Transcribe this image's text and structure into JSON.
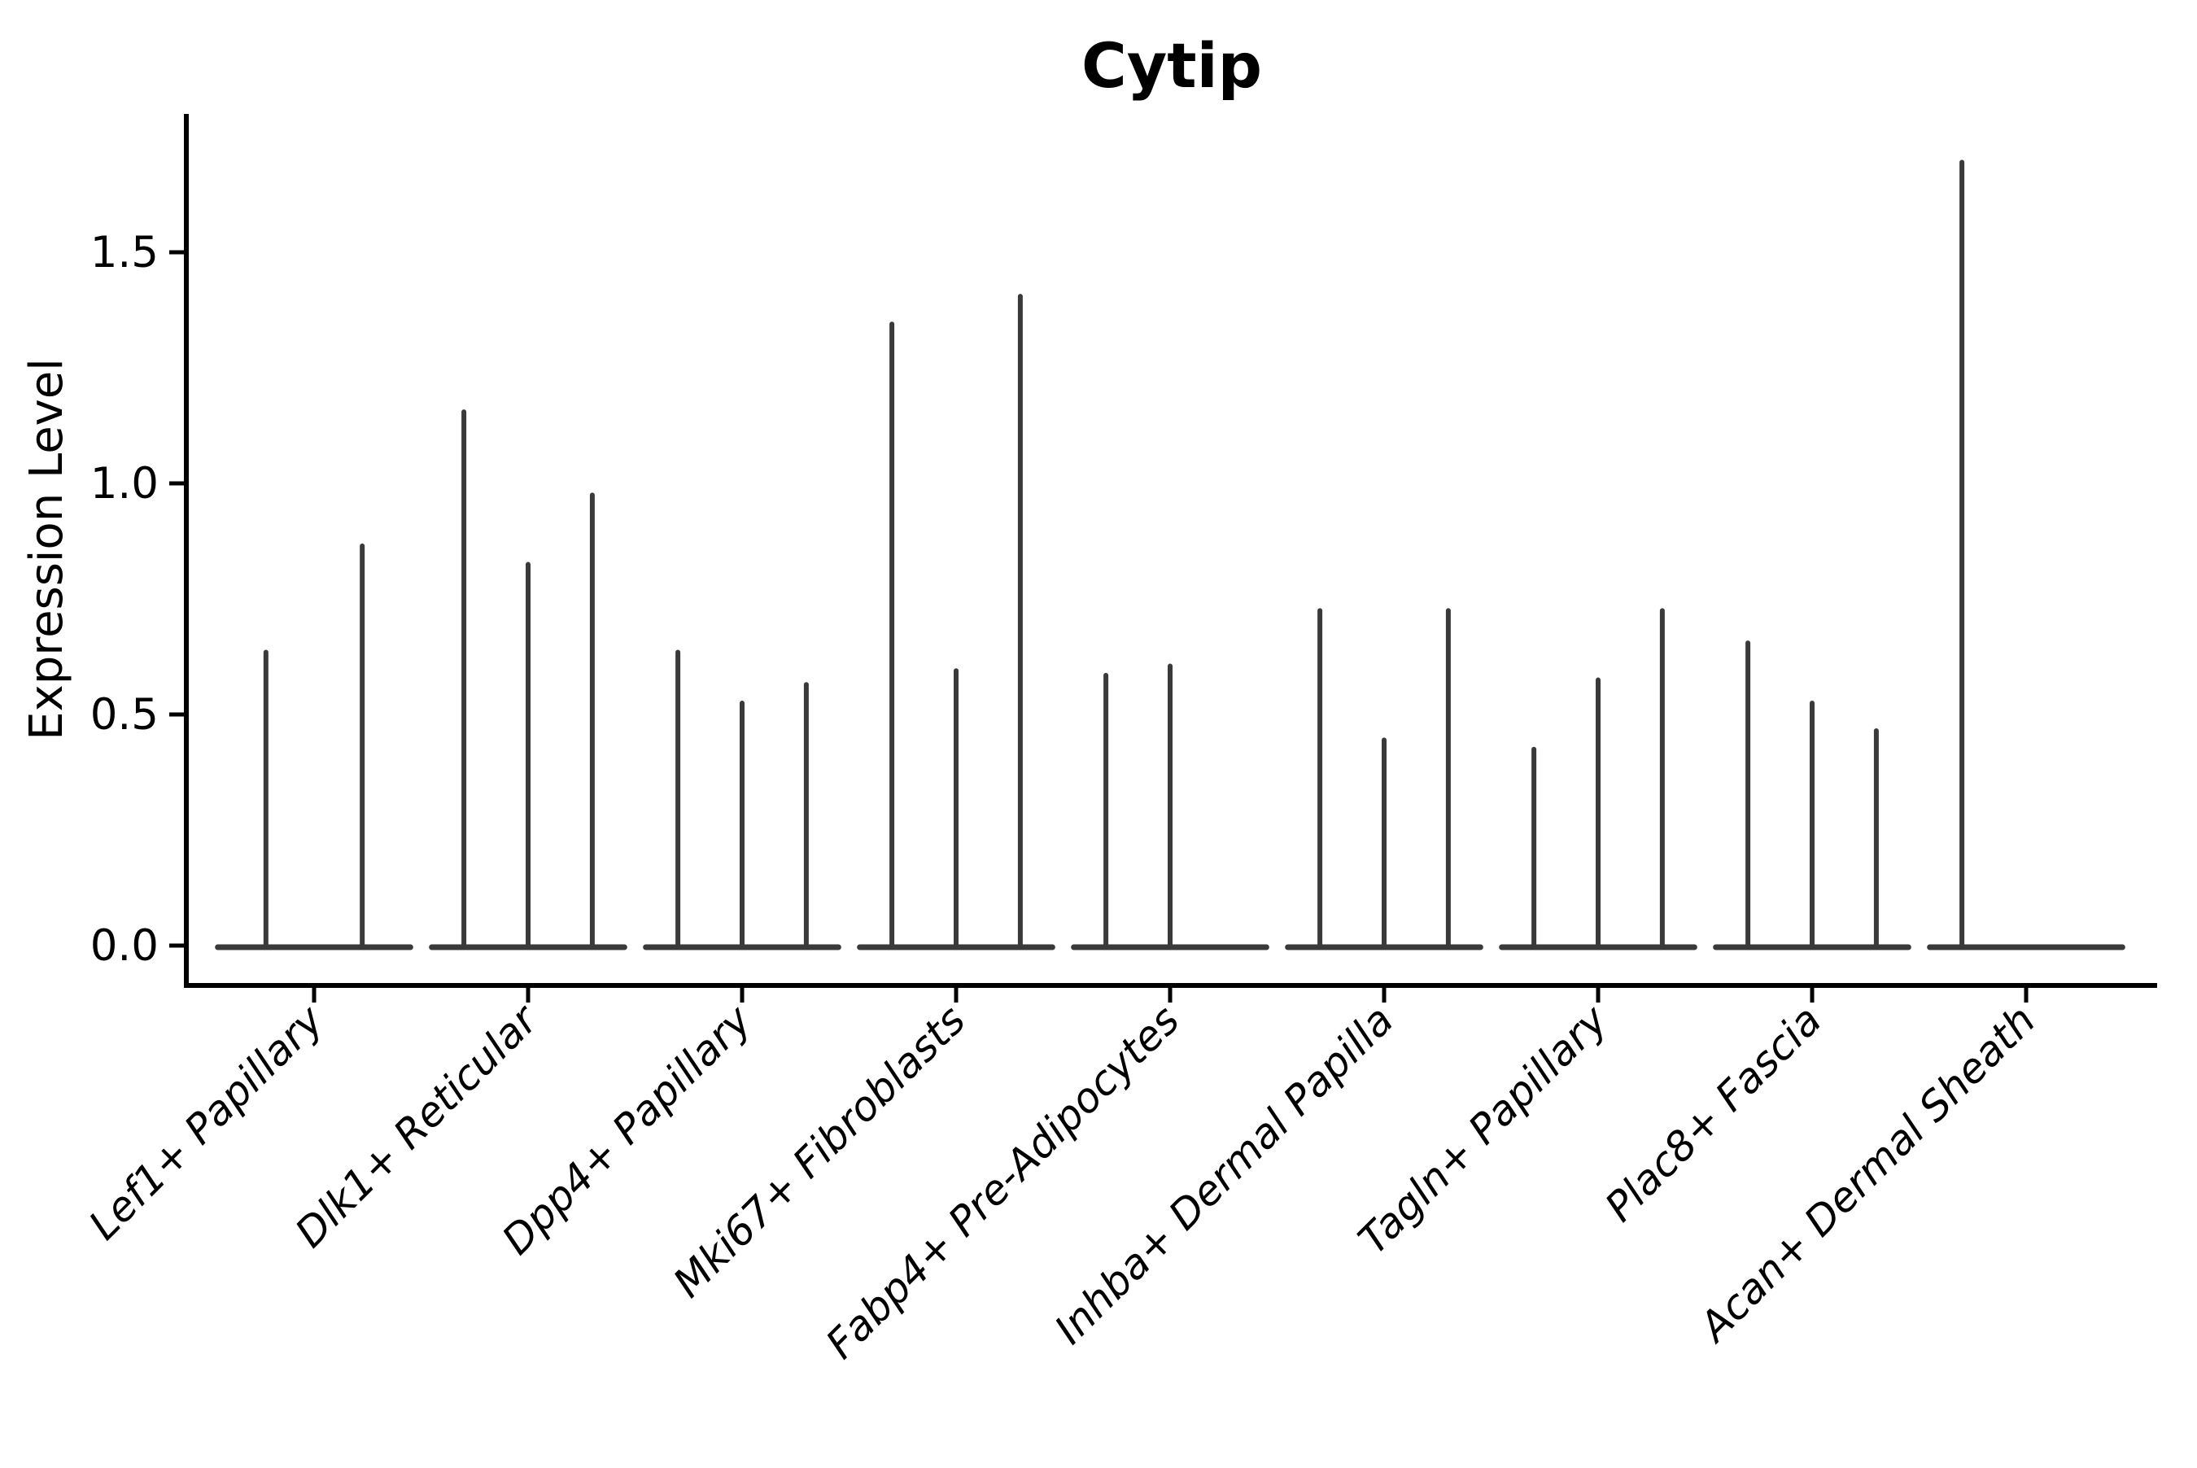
{
  "chart_data": {
    "type": "violin",
    "title": "Cytip",
    "ylabel": "Expression Level",
    "xlabel": "",
    "legend": "none",
    "grid": false,
    "background_color": "#ffffff",
    "violin_color": "#3a3a3a",
    "axis_color": "#000000",
    "text_color": "#000000",
    "ylim": [
      -0.09,
      1.8
    ],
    "ytick_labels": [
      "0.0",
      "0.5",
      "1.0",
      "1.5"
    ],
    "ytick_values": [
      0.0,
      0.5,
      1.0,
      1.5
    ],
    "description": "Each category shows dodged sub-violins collapsed to a flat baseline at 0 expression with thin vertical density spikes; spike height = max expression value.",
    "categories": [
      {
        "label": "Lef1+ Papillary",
        "violin_maxes": [
          0.64,
          0.87
        ]
      },
      {
        "label": "Dlk1+ Reticular",
        "violin_maxes": [
          1.16,
          0.83,
          0.98
        ]
      },
      {
        "label": "Dpp4+ Papillary",
        "violin_maxes": [
          0.64,
          0.53,
          0.57
        ]
      },
      {
        "label": "Mki67+ Fibroblasts",
        "violin_maxes": [
          1.35,
          0.6,
          1.41
        ]
      },
      {
        "label": "Fabp4+ Pre-Adipocytes",
        "violin_maxes": [
          0.59,
          0.61,
          0.0
        ]
      },
      {
        "label": "Inhba+ Dermal Papilla",
        "violin_maxes": [
          0.73,
          0.45,
          0.73
        ]
      },
      {
        "label": "Tagln+ Papillary",
        "violin_maxes": [
          0.43,
          0.58,
          0.73
        ]
      },
      {
        "label": "Plac8+ Fascia",
        "violin_maxes": [
          0.66,
          0.53,
          0.47
        ]
      },
      {
        "label": "Acan+ Dermal Sheath",
        "violin_maxes": [
          1.7,
          0.0,
          0.0
        ]
      }
    ]
  }
}
